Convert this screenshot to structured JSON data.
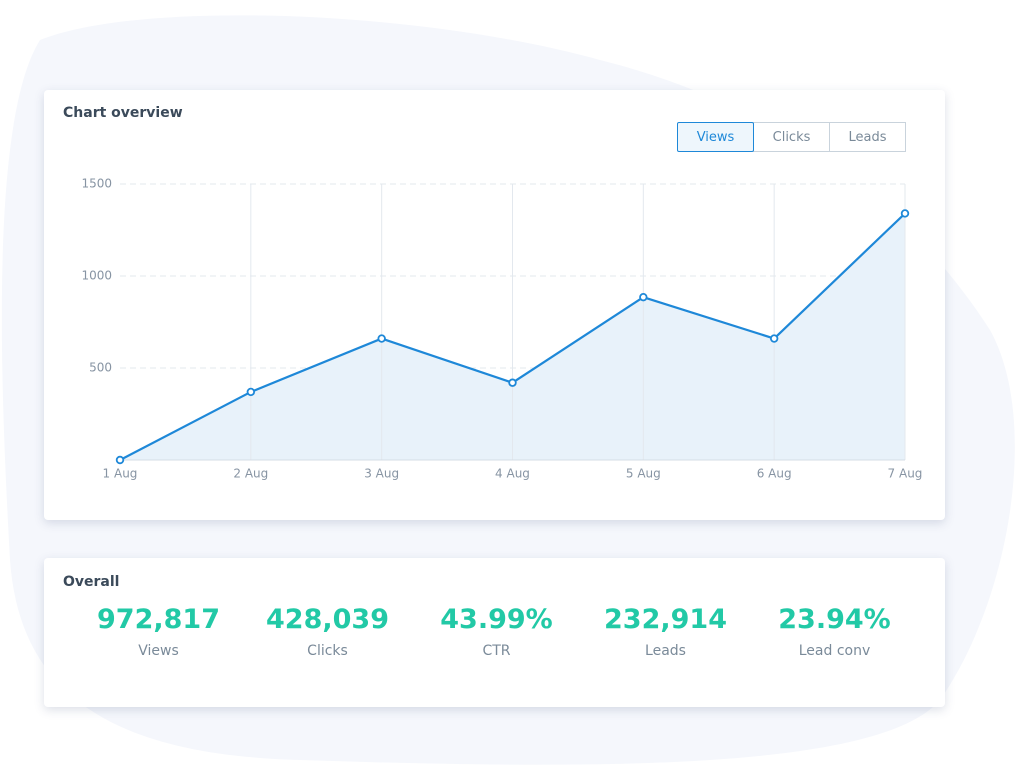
{
  "chart_data": {
    "type": "line",
    "title": "Chart overview",
    "tabs": [
      "Views",
      "Clicks",
      "Leads"
    ],
    "active_tab": 0,
    "categories": [
      "1 Aug",
      "2 Aug",
      "3 Aug",
      "4 Aug",
      "5 Aug",
      "6 Aug",
      "7 Aug"
    ],
    "values": [
      0,
      370,
      660,
      420,
      885,
      660,
      1340
    ],
    "color": "#1e88d8",
    "area_color": "#e8f2fa",
    "area": true,
    "ylim": [
      0,
      1500
    ],
    "yticks": [
      500,
      1000,
      1500
    ],
    "grid": true
  },
  "overall": {
    "title": "Overall",
    "stats": [
      {
        "value": "972,817",
        "label": "Views"
      },
      {
        "value": "428,039",
        "label": "Clicks"
      },
      {
        "value": "43.99%",
        "label": "CTR"
      },
      {
        "value": "232,914",
        "label": "Leads"
      },
      {
        "value": "23.94%",
        "label": "Lead conv"
      }
    ]
  }
}
